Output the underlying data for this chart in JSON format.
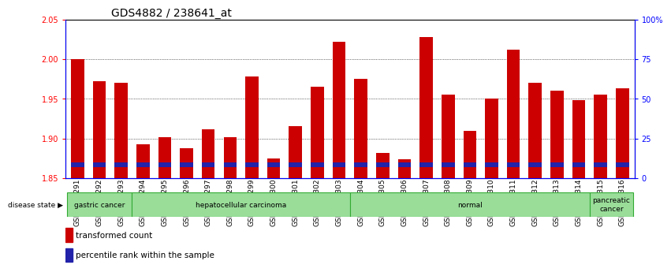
{
  "title": "GDS4882 / 238641_at",
  "samples": [
    "GSM1200291",
    "GSM1200292",
    "GSM1200293",
    "GSM1200294",
    "GSM1200295",
    "GSM1200296",
    "GSM1200297",
    "GSM1200298",
    "GSM1200299",
    "GSM1200300",
    "GSM1200301",
    "GSM1200302",
    "GSM1200303",
    "GSM1200304",
    "GSM1200305",
    "GSM1200306",
    "GSM1200307",
    "GSM1200308",
    "GSM1200309",
    "GSM1200310",
    "GSM1200311",
    "GSM1200312",
    "GSM1200313",
    "GSM1200314",
    "GSM1200315",
    "GSM1200316"
  ],
  "transformed_count": [
    2.0,
    1.972,
    1.97,
    1.893,
    1.902,
    1.888,
    1.912,
    1.902,
    1.978,
    1.875,
    1.916,
    1.965,
    2.022,
    1.975,
    1.882,
    1.874,
    2.028,
    1.955,
    1.91,
    1.95,
    2.012,
    1.97,
    1.96,
    1.948,
    1.955,
    1.963
  ],
  "blue_bar_bottom": 1.864,
  "blue_bar_height": 0.006,
  "ymin": 1.85,
  "ymax": 2.05,
  "yticks_left": [
    1.85,
    1.9,
    1.95,
    2.0,
    2.05
  ],
  "yticks_right": [
    0,
    25,
    50,
    75,
    100
  ],
  "grid_lines": [
    1.9,
    1.95,
    2.0
  ],
  "bar_color_red": "#cc0000",
  "bar_color_blue": "#2222aa",
  "bar_width": 0.6,
  "disease_groups": [
    {
      "label": "gastric cancer",
      "start": 0,
      "end": 2
    },
    {
      "label": "hepatocellular carcinoma",
      "start": 3,
      "end": 12
    },
    {
      "label": "normal",
      "start": 13,
      "end": 23
    },
    {
      "label": "pancreatic\ncancer",
      "start": 24,
      "end": 25
    }
  ],
  "group_color": "#99dd99",
  "group_border_color": "#33aa33",
  "legend_red_label": "transformed count",
  "legend_blue_label": "percentile rank within the sample",
  "disease_state_label": "disease state",
  "title_fontsize": 10,
  "tick_fontsize": 7,
  "xlbl_fontsize": 6.5,
  "bg_color": "#ffffff"
}
